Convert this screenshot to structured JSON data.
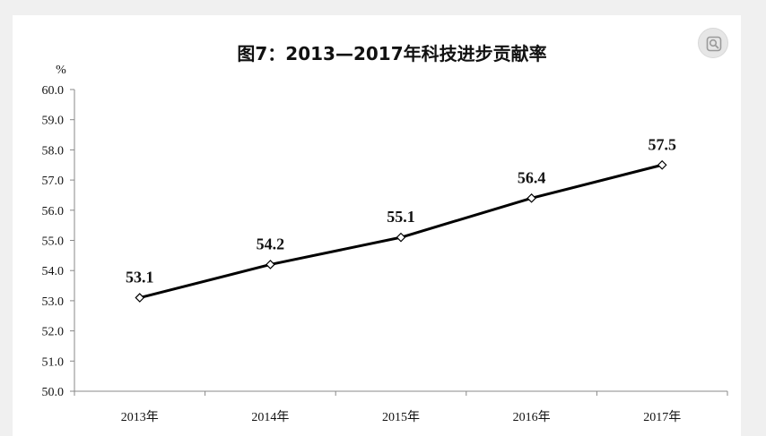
{
  "chart_data": {
    "type": "line",
    "title": "图7：2013—2017年科技进步贡献率",
    "ylabel": "%",
    "xlabel": "",
    "categories": [
      "2013年",
      "2014年",
      "2015年",
      "2016年",
      "2017年"
    ],
    "series": [
      {
        "values": [
          53.1,
          54.2,
          55.1,
          56.4,
          57.5
        ]
      }
    ],
    "data_labels": [
      "53.1",
      "54.2",
      "55.1",
      "56.4",
      "57.5"
    ],
    "ylim": [
      50.0,
      60.0
    ],
    "yticks": [
      "50.0",
      "51.0",
      "52.0",
      "53.0",
      "54.0",
      "55.0",
      "56.0",
      "57.0",
      "58.0",
      "59.0",
      "60.0"
    ],
    "grid": false,
    "legend": "none",
    "line_color": "#000000",
    "marker": "diamond"
  },
  "toolbar": {
    "lens_icon": "image-search-icon"
  }
}
